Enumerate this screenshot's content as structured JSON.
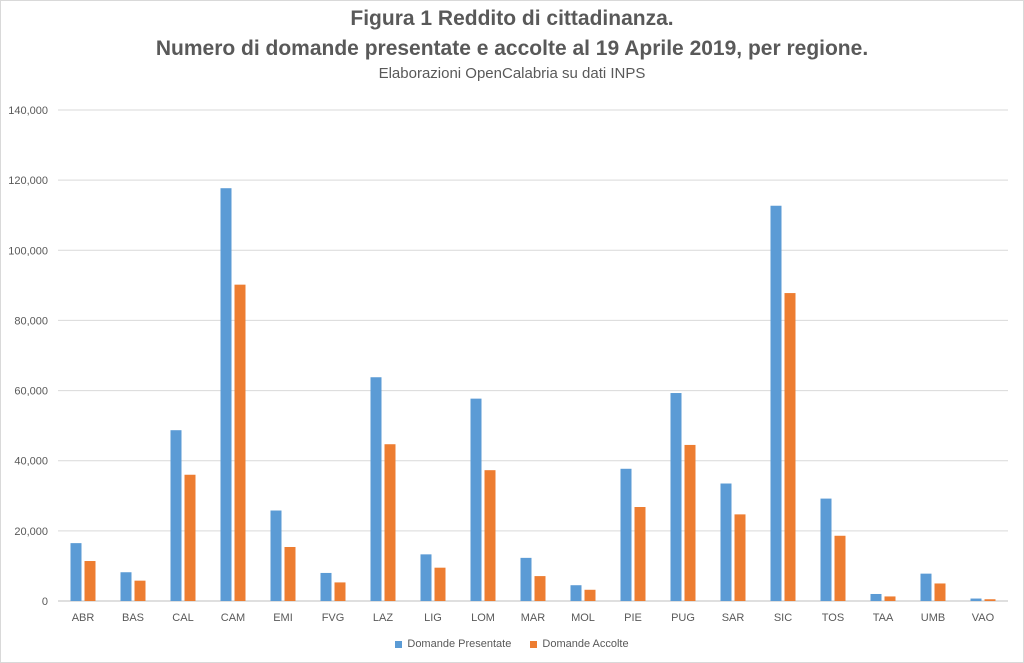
{
  "chart_data": {
    "type": "bar",
    "title": "Figura 1 Reddito di cittadinanza.",
    "subtitle": "Numero di domande presentate e accolte al 19 Aprile 2019, per regione.",
    "source": "Elaborazioni OpenCalabria su dati INPS",
    "xlabel": "",
    "ylabel": "",
    "ylim": [
      0,
      140000
    ],
    "yticks": [
      "0",
      "20,000",
      "40,000",
      "60,000",
      "80,000",
      "100,000",
      "120,000",
      "140,000"
    ],
    "ytick_values": [
      0,
      20000,
      40000,
      60000,
      80000,
      100000,
      120000,
      140000
    ],
    "grid": true,
    "legend_position": "bottom",
    "categories": [
      "ABR",
      "BAS",
      "CAL",
      "CAM",
      "EMI",
      "FVG",
      "LAZ",
      "LIG",
      "LOM",
      "MAR",
      "MOL",
      "PIE",
      "PUG",
      "SAR",
      "SIC",
      "TOS",
      "TAA",
      "UMB",
      "VAO"
    ],
    "series": [
      {
        "name": "Domande Presentate",
        "color": "#5b9bd5",
        "values": [
          16500,
          8200,
          48700,
          117700,
          25800,
          8000,
          63800,
          13300,
          57700,
          12300,
          4500,
          37700,
          59300,
          33500,
          112700,
          29200,
          2000,
          7800,
          700
        ]
      },
      {
        "name": "Domande Accolte",
        "color": "#ed7d31",
        "values": [
          11400,
          5800,
          36000,
          90200,
          15400,
          5300,
          44700,
          9500,
          37300,
          7100,
          3200,
          26800,
          44500,
          24700,
          87800,
          18600,
          1300,
          5000,
          500
        ]
      }
    ]
  }
}
